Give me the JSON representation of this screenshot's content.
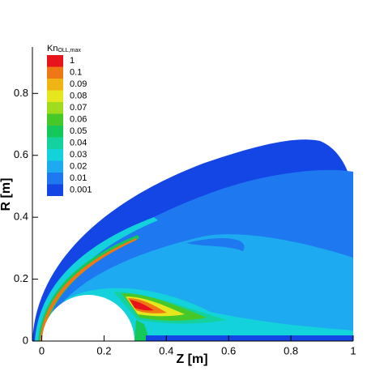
{
  "chart_data": {
    "type": "contour",
    "x_label": "Z [m]",
    "y_label": "R [m]",
    "xlim": [
      -0.03,
      1
    ],
    "ylim": [
      0,
      0.95
    ],
    "xticks": [
      0,
      0.2,
      0.4,
      0.6,
      0.8,
      1
    ],
    "yticks": [
      0,
      0.2,
      0.4,
      0.6,
      0.8
    ],
    "legend_title": "Kn",
    "legend_subscript": "OLL,max",
    "levels": [
      1,
      0.1,
      0.09,
      0.08,
      0.07,
      0.06,
      0.05,
      0.04,
      0.03,
      0.02,
      0.01,
      0.001
    ],
    "colors": [
      "#e8141c",
      "#f07814",
      "#f0b414",
      "#e6e61e",
      "#a0dc1e",
      "#46c828",
      "#14c85a",
      "#14d2a0",
      "#14d2dc",
      "#1eaaf0",
      "#1e78f0",
      "#1446e6"
    ]
  }
}
